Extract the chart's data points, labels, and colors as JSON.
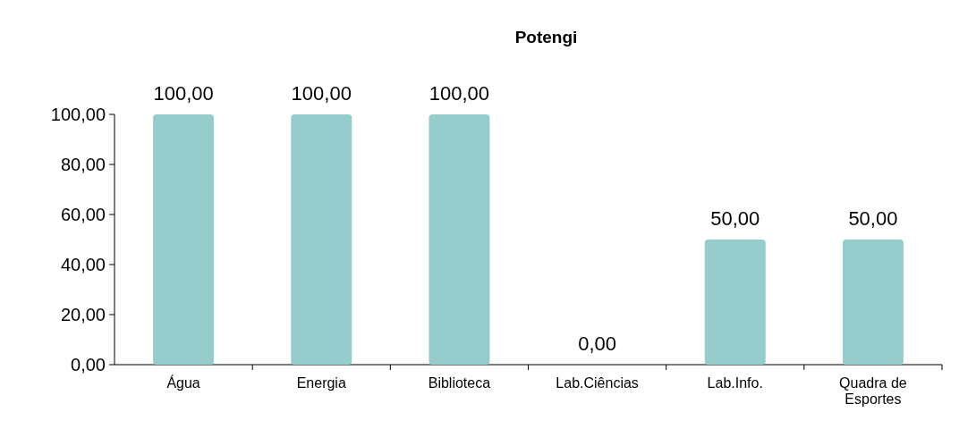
{
  "chart_data": {
    "type": "bar",
    "title": "Potengi",
    "categories": [
      "Água",
      "Energia",
      "Biblioteca",
      "Lab.Ciências",
      "Lab.Info.",
      "Quadra de Esportes"
    ],
    "values": [
      100,
      100,
      100,
      0,
      50,
      50
    ],
    "color": "#97cccc",
    "value_labels": [
      "100,00",
      "100,00",
      "100,00",
      "0,00",
      "50,00",
      "50,00"
    ],
    "ylim": [
      0,
      100
    ],
    "yticks": [
      {
        "value": 0,
        "label": "0,00"
      },
      {
        "value": 20,
        "label": "20,00"
      },
      {
        "value": 40,
        "label": "40,00"
      },
      {
        "value": 60,
        "label": "60,00"
      },
      {
        "value": 80,
        "label": "80,00"
      },
      {
        "value": 100,
        "label": "100,00"
      }
    ],
    "grid": false
  }
}
